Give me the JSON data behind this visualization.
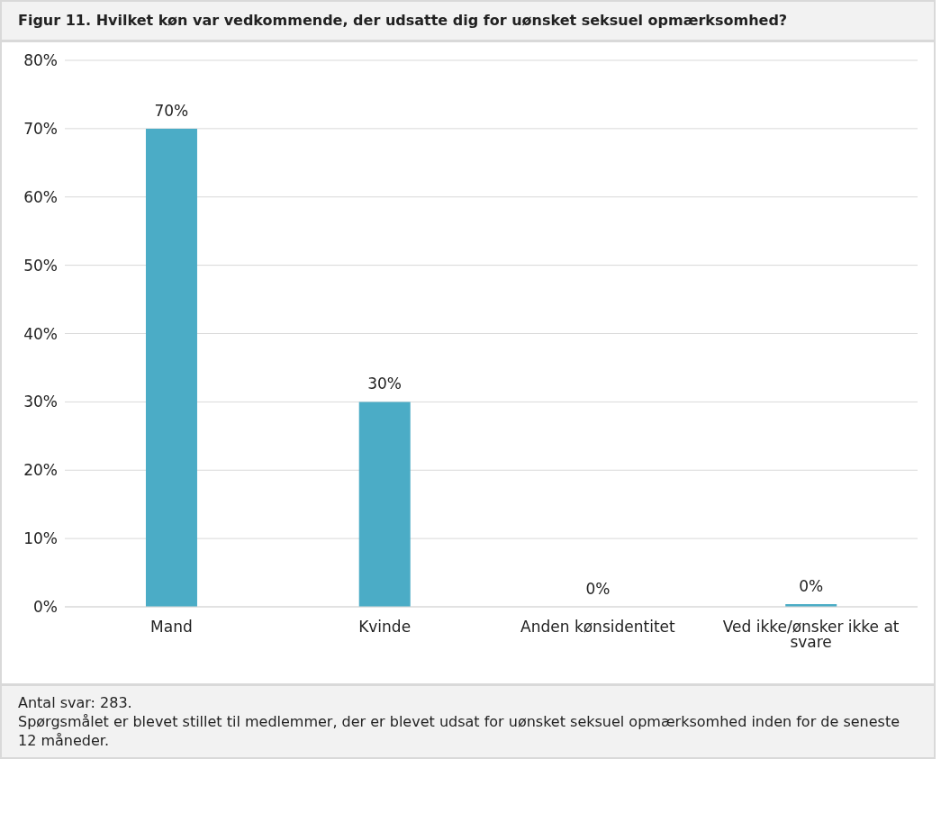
{
  "chart_data": {
    "type": "bar",
    "title": "Figur 11. Hvilket køn var vedkommende, der udsatte dig for uønsket seksuel opmærksomhed?",
    "categories": [
      "Mand",
      "Kvinde",
      "Anden kønsidentitet",
      "Ved ikke/ønsker ikke at svare"
    ],
    "values": [
      70,
      30,
      0,
      0.4
    ],
    "value_labels": [
      "70%",
      "30%",
      "0%",
      "0%"
    ],
    "color": "#4bacc6",
    "ylim": [
      0,
      80
    ],
    "yticks": [
      {
        "value": 0,
        "label": "0%"
      },
      {
        "value": 10,
        "label": "10%"
      },
      {
        "value": 20,
        "label": "20%"
      },
      {
        "value": 30,
        "label": "30%"
      },
      {
        "value": 40,
        "label": "40%"
      },
      {
        "value": 50,
        "label": "50%"
      },
      {
        "value": 60,
        "label": "60%"
      },
      {
        "value": 70,
        "label": "70%"
      },
      {
        "value": 80,
        "label": "80%"
      }
    ],
    "grid": "y",
    "annotations": [
      "Antal svar: 283.",
      "Spørgsmålet er blevet stillet til medlemmer, der er blevet udsat for uønsket seksuel opmærksomhed inden for de seneste 12 måneder."
    ]
  }
}
